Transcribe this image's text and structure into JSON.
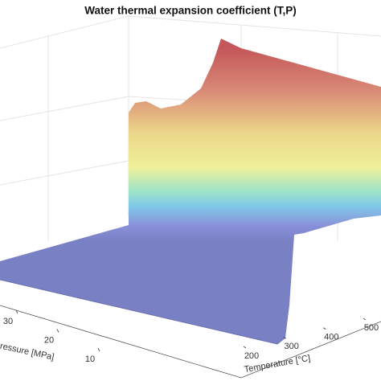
{
  "chart_data": {
    "type": "surface",
    "title": "Water thermal expansion coefficient (T,P)",
    "xlabel": "Temperature [°C]",
    "xticks": [
      200,
      300,
      400,
      500
    ],
    "ylabel": "Pressure [MPa]",
    "yticks": [
      10,
      20,
      30
    ]
  }
}
